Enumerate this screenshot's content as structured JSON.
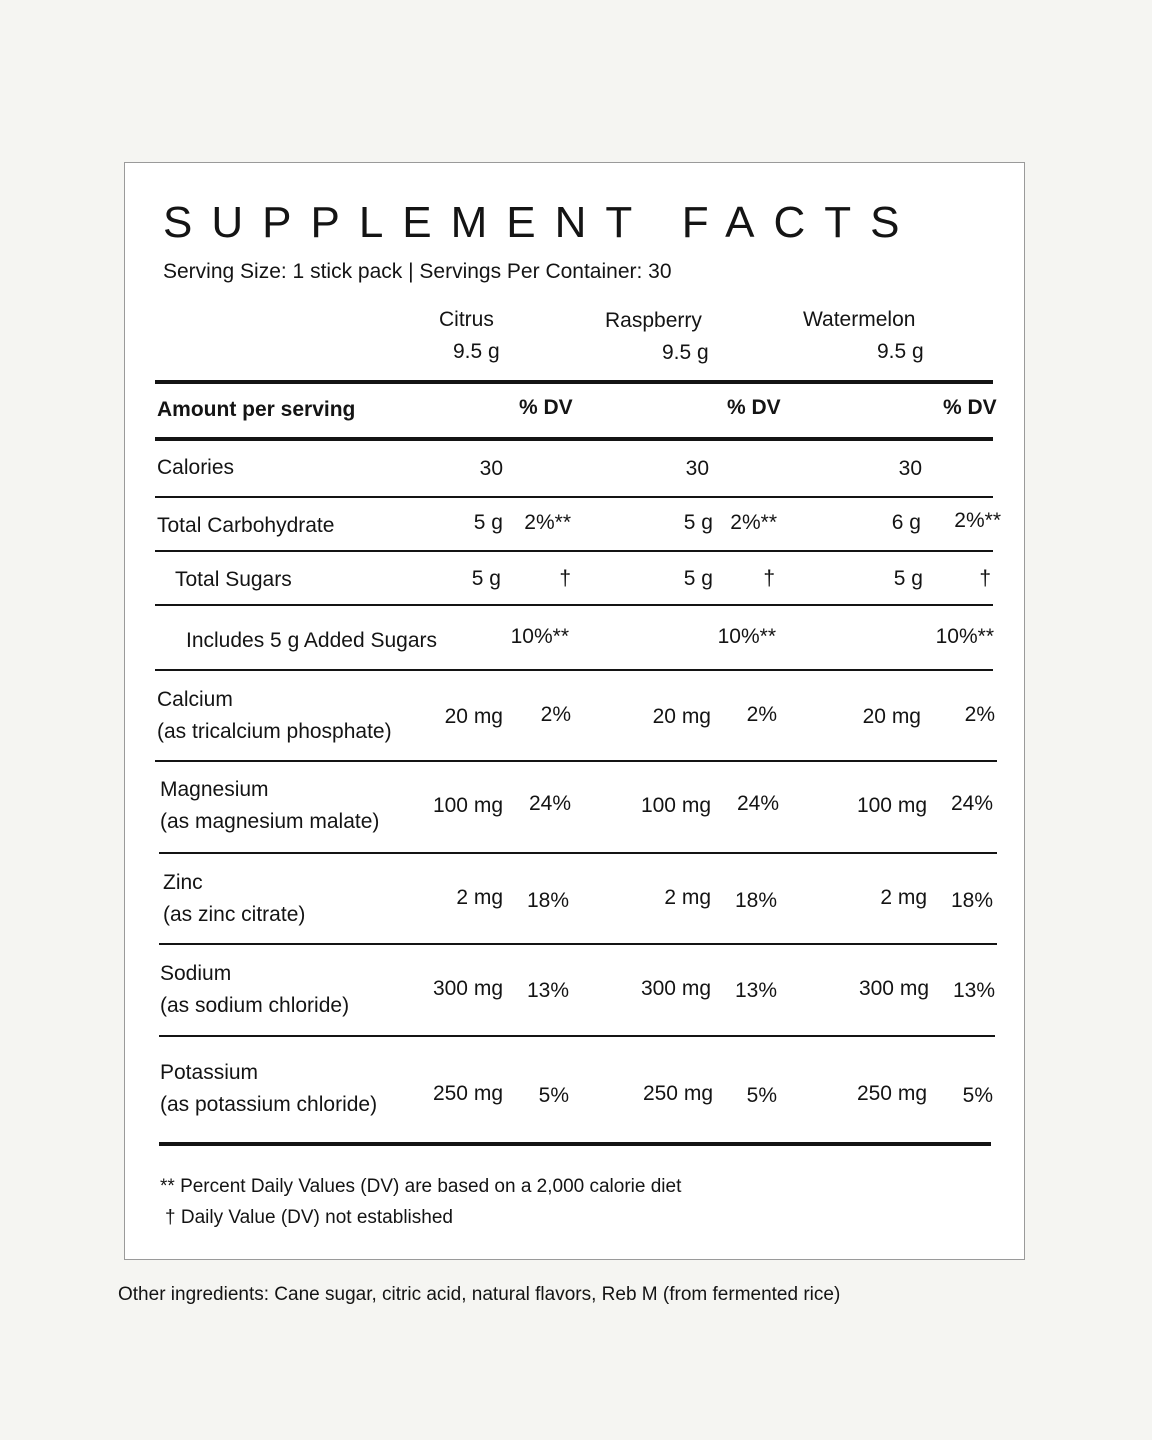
{
  "title": "SUPPLEMENT FACTS",
  "serving": "Serving Size: 1 stick pack | Servings Per Container: 30",
  "columns": [
    {
      "name": "Citrus",
      "weight": "9.5 g"
    },
    {
      "name": "Raspberry",
      "weight": "9.5 g"
    },
    {
      "name": "Watermelon",
      "weight": "9.5 g"
    }
  ],
  "header_row": {
    "label": "Amount per serving",
    "dv": "% DV"
  },
  "rows": [
    {
      "label": "Calories",
      "sub": "",
      "cells": [
        {
          "amount": "30",
          "dv": ""
        },
        {
          "amount": "30",
          "dv": ""
        },
        {
          "amount": "30",
          "dv": ""
        }
      ]
    },
    {
      "label": "Total Carbohydrate",
      "sub": "",
      "cells": [
        {
          "amount": "5 g",
          "dv": "2%**"
        },
        {
          "amount": "5 g",
          "dv": "2%**"
        },
        {
          "amount": "6 g",
          "dv": "2%**"
        }
      ]
    },
    {
      "label": "Total Sugars",
      "sub": "",
      "cells": [
        {
          "amount": "5 g",
          "dv": "†"
        },
        {
          "amount": "5 g",
          "dv": "†"
        },
        {
          "amount": "5 g",
          "dv": "†"
        }
      ]
    },
    {
      "label": "Includes 5 g Added Sugars",
      "sub": "",
      "cells": [
        {
          "amount": "",
          "dv": "10%**"
        },
        {
          "amount": "",
          "dv": "10%**"
        },
        {
          "amount": "",
          "dv": "10%**"
        }
      ]
    },
    {
      "label": "Calcium",
      "sub": "(as tricalcium phosphate)",
      "cells": [
        {
          "amount": "20 mg",
          "dv": "2%"
        },
        {
          "amount": "20 mg",
          "dv": "2%"
        },
        {
          "amount": "20 mg",
          "dv": "2%"
        }
      ]
    },
    {
      "label": "Magnesium",
      "sub": "(as magnesium malate)",
      "cells": [
        {
          "amount": "100 mg",
          "dv": "24%"
        },
        {
          "amount": "100 mg",
          "dv": "24%"
        },
        {
          "amount": "100 mg",
          "dv": "24%"
        }
      ]
    },
    {
      "label": "Zinc",
      "sub": "(as zinc citrate)",
      "cells": [
        {
          "amount": "2 mg",
          "dv": "18%"
        },
        {
          "amount": "2 mg",
          "dv": "18%"
        },
        {
          "amount": "2 mg",
          "dv": "18%"
        }
      ]
    },
    {
      "label": "Sodium",
      "sub": "(as sodium chloride)",
      "cells": [
        {
          "amount": "300 mg",
          "dv": "13%"
        },
        {
          "amount": "300 mg",
          "dv": "13%"
        },
        {
          "amount": "300 mg",
          "dv": "13%"
        }
      ]
    },
    {
      "label": "Potassium",
      "sub": "(as potassium chloride)",
      "cells": [
        {
          "amount": "250 mg",
          "dv": "5%"
        },
        {
          "amount": "250 mg",
          "dv": "5%"
        },
        {
          "amount": "250 mg",
          "dv": "5%"
        }
      ]
    }
  ],
  "footnotes": [
    "** Percent Daily Values (DV) are based on a 2,000 calorie diet",
    "† Daily Value (DV) not established"
  ],
  "other_ingredients": "Other ingredients: Cane sugar, citric acid, natural flavors, Reb M (from fermented rice)"
}
